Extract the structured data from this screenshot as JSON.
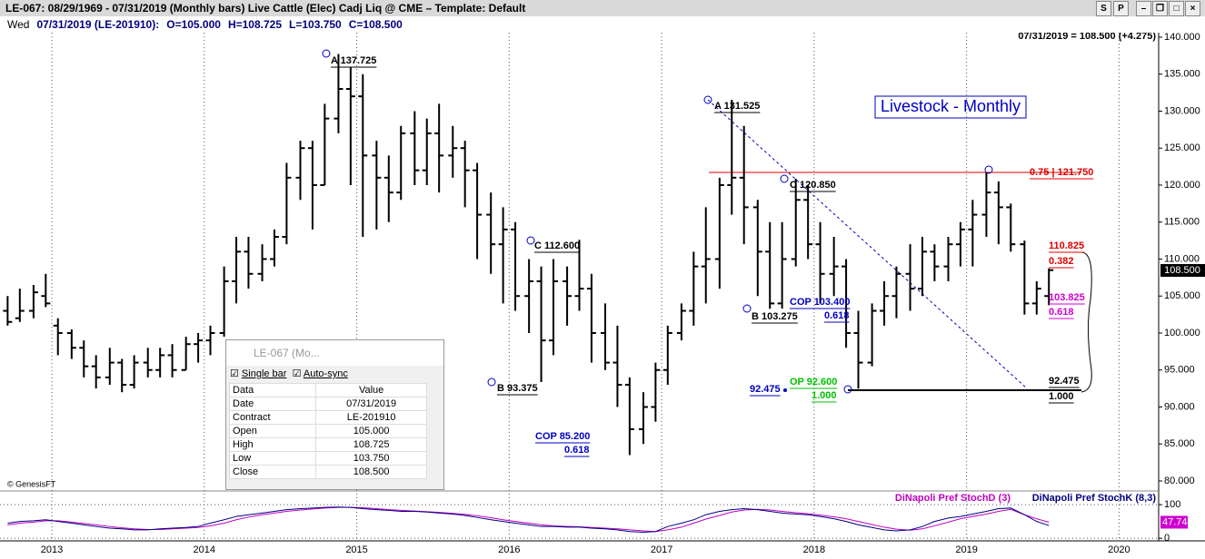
{
  "window": {
    "title": "LE-067:  08/29/1969 - 07/31/2019  (Monthly bars)   Live Cattle (Elec) Cadj Liq @ CME  –  Template: Default",
    "buttons": [
      "S",
      "P"
    ]
  },
  "info": {
    "day": "Wed",
    "bar": "07/31/2019 (LE-201910):",
    "open": "O=105.000",
    "high": "H=108.725",
    "low": "L=103.750",
    "close": "C=108.500",
    "last": "07/31/2019 = 108.500 (+4.275)"
  },
  "chart_data": {
    "type": "ohlc",
    "title": "Livestock - Monthly",
    "x": [
      2012.71,
      2012.79,
      2012.88,
      2012.96,
      2013.04,
      2013.13,
      2013.21,
      2013.29,
      2013.38,
      2013.46,
      2013.54,
      2013.63,
      2013.71,
      2013.79,
      2013.88,
      2013.96,
      2014.04,
      2014.13,
      2014.21,
      2014.29,
      2014.38,
      2014.46,
      2014.54,
      2014.63,
      2014.71,
      2014.79,
      2014.88,
      2014.96,
      2015.04,
      2015.13,
      2015.21,
      2015.29,
      2015.38,
      2015.46,
      2015.54,
      2015.63,
      2015.71,
      2015.79,
      2015.88,
      2015.96,
      2016.04,
      2016.13,
      2016.21,
      2016.29,
      2016.38,
      2016.46,
      2016.54,
      2016.63,
      2016.71,
      2016.79,
      2016.88,
      2016.96,
      2017.04,
      2017.13,
      2017.21,
      2017.29,
      2017.38,
      2017.46,
      2017.54,
      2017.63,
      2017.71,
      2017.79,
      2017.88,
      2017.96,
      2018.04,
      2018.13,
      2018.21,
      2018.29,
      2018.38,
      2018.46,
      2018.54,
      2018.63,
      2018.71,
      2018.79,
      2018.88,
      2018.96,
      2019.04,
      2019.13,
      2019.21,
      2019.29,
      2019.38,
      2019.46,
      2019.54
    ],
    "open": [
      103,
      102,
      103,
      105,
      101,
      100,
      98,
      95.5,
      94,
      96,
      93,
      96,
      95,
      97,
      95,
      98.5,
      99,
      100,
      107,
      111,
      108,
      110,
      113,
      121,
      125,
      120,
      129,
      133,
      132,
      124,
      121,
      119,
      127,
      122,
      127,
      124,
      125,
      122,
      116,
      112,
      114,
      105,
      107,
      99,
      107,
      105,
      106,
      100,
      96,
      93,
      87,
      90,
      95,
      100,
      103,
      109,
      110,
      120,
      121,
      117,
      111,
      104,
      110,
      118,
      112,
      108,
      109,
      100,
      96,
      103,
      105,
      108,
      106,
      111,
      109,
      112,
      114,
      116,
      119,
      117,
      112,
      104,
      105
    ],
    "high": [
      105,
      106,
      106.5,
      108,
      102,
      100.5,
      99,
      97,
      98,
      96.5,
      97,
      98,
      98,
      98.5,
      99.5,
      100,
      101,
      109,
      113,
      113,
      112,
      114,
      123,
      126,
      126,
      131,
      137.725,
      136,
      135,
      126,
      124,
      128,
      130,
      129,
      131,
      128,
      126,
      123,
      119,
      117,
      115,
      110,
      109,
      110,
      109,
      112.6,
      108,
      104,
      101,
      94,
      92,
      96,
      101,
      104,
      111,
      117,
      121,
      131.525,
      128,
      118,
      115,
      115,
      120.85,
      120,
      115,
      113,
      110,
      103,
      104,
      107,
      109,
      112,
      113,
      112,
      113,
      115,
      118,
      121.75,
      120.5,
      117.5,
      112.5,
      107,
      108.725
    ],
    "low": [
      101,
      101.5,
      102,
      103.5,
      97,
      96.5,
      94,
      92.5,
      93,
      92,
      92.5,
      94,
      94,
      94,
      95,
      96,
      97,
      99.5,
      104,
      106,
      107,
      109,
      112,
      118,
      114,
      120,
      127,
      120,
      113,
      114,
      115,
      118,
      120,
      120,
      119,
      121,
      117,
      110,
      108,
      104,
      103,
      100,
      93.375,
      97,
      101,
      103,
      96,
      95,
      90,
      83.5,
      85,
      88,
      93,
      99,
      101,
      104,
      106,
      116,
      112,
      105,
      103.275,
      103.3,
      109,
      110,
      104,
      105,
      98,
      92.475,
      95.5,
      101,
      102,
      103,
      105,
      107,
      107,
      109,
      109,
      113,
      112,
      111,
      102.5,
      102.5,
      103.75
    ],
    "close": [
      101.5,
      103,
      105.5,
      104,
      100,
      98,
      95.5,
      94,
      96,
      93,
      96,
      95,
      97,
      95,
      98.5,
      99,
      100,
      107,
      111,
      108,
      110,
      113,
      121,
      125,
      120,
      129,
      133,
      132,
      124,
      121,
      119,
      127,
      122,
      127,
      124,
      125,
      122,
      116,
      112,
      114,
      105,
      107,
      99,
      107,
      105,
      106,
      100,
      96,
      93,
      87,
      90,
      95,
      100,
      103,
      109,
      110,
      120,
      121,
      117,
      111,
      104,
      110,
      118,
      112,
      108,
      109,
      100,
      96,
      103,
      105,
      108,
      106,
      111,
      109,
      112,
      114,
      116,
      119,
      117,
      112,
      104,
      106,
      108.5
    ],
    "color": "#000000",
    "xlim": [
      2012.66,
      2020.26
    ],
    "xticks": [
      2013,
      2014,
      2015,
      2016,
      2017,
      2018,
      2019,
      2020
    ],
    "grid": true,
    "ylim": [
      78.77,
      140.61
    ],
    "yticks": [
      {
        "value": 80,
        "label": "80.000"
      },
      {
        "value": 85,
        "label": "85.000"
      },
      {
        "value": 90,
        "label": "90.000"
      },
      {
        "value": 95,
        "label": "95.000"
      },
      {
        "value": 100,
        "label": "100.000"
      },
      {
        "value": 105,
        "label": "105.000"
      },
      {
        "value": 110,
        "label": "110.000"
      },
      {
        "value": 115,
        "label": "115.000"
      },
      {
        "value": 120,
        "label": "120.000"
      },
      {
        "value": 125,
        "label": "125.000"
      },
      {
        "value": 130,
        "label": "130.000"
      },
      {
        "value": 135,
        "label": "135.000"
      },
      {
        "value": 140,
        "label": "140.000"
      }
    ],
    "last_label": "108.500",
    "annotations": [
      "A 137.725",
      "A 131.525",
      "C 120.850",
      "C 112.600",
      "B 93.375",
      "B 103.275",
      "COP 103.400",
      "0.618",
      "COP 85.200",
      "0.618",
      "OP 92.600",
      "1.000",
      "92.475",
      "0.75 | 121.750",
      "110.825",
      "0.382",
      "103.825",
      "0.618",
      "92.475",
      "1.000"
    ],
    "copyright": "© GenesisFT",
    "indicator": {
      "ylim": [
        -5,
        130
      ],
      "yticks": [
        100,
        0
      ],
      "last_value": 47.74,
      "series": [
        {
          "name": "DiNapoli Pref StochD (3)",
          "color": "#c000c0",
          "values": [
            40,
            45,
            48,
            52,
            52,
            48,
            44,
            40,
            35,
            31,
            28,
            26,
            26,
            28,
            30,
            32,
            37,
            45,
            55,
            63,
            70,
            75,
            80,
            84,
            87,
            90,
            92,
            92,
            91,
            88,
            85,
            83,
            81,
            79,
            77,
            74,
            71,
            67,
            61,
            55,
            50,
            45,
            40,
            37,
            35,
            34,
            32,
            30,
            28,
            25,
            22,
            20,
            25,
            33,
            45,
            57,
            68,
            78,
            84,
            86,
            84,
            80,
            76,
            73,
            69,
            64,
            58,
            50,
            41,
            33,
            27,
            24,
            28,
            37,
            48,
            58,
            65,
            72,
            80,
            86,
            70,
            58,
            47.74
          ]
        },
        {
          "name": "DiNapoli Pref StochK (8,3)",
          "color": "#000080",
          "values": [
            45,
            50,
            52,
            55,
            50,
            45,
            40,
            35,
            30,
            28,
            25,
            25,
            28,
            30,
            32,
            35,
            45,
            55,
            65,
            70,
            75,
            80,
            85,
            88,
            90,
            92,
            93,
            92,
            88,
            85,
            83,
            80,
            80,
            78,
            75,
            72,
            68,
            62,
            55,
            50,
            45,
            40,
            35,
            35,
            33,
            33,
            30,
            28,
            25,
            20,
            18,
            20,
            35,
            45,
            55,
            70,
            80,
            85,
            88,
            85,
            80,
            75,
            72,
            70,
            65,
            58,
            50,
            40,
            32,
            25,
            22,
            25,
            35,
            50,
            60,
            65,
            72,
            80,
            88,
            90,
            70,
            50,
            38
          ]
        }
      ]
    }
  },
  "data_window": {
    "title": "LE-067 (Mo...",
    "checks": [
      "Single bar",
      "Auto-sync"
    ],
    "header": [
      "Data",
      "Value"
    ],
    "rows": [
      [
        "Date",
        "07/31/2019"
      ],
      [
        "Contract",
        "LE-201910"
      ],
      [
        "Open",
        "105.000"
      ],
      [
        "High",
        "108.725"
      ],
      [
        "Low",
        "103.750"
      ],
      [
        "Close",
        "108.500"
      ]
    ]
  }
}
